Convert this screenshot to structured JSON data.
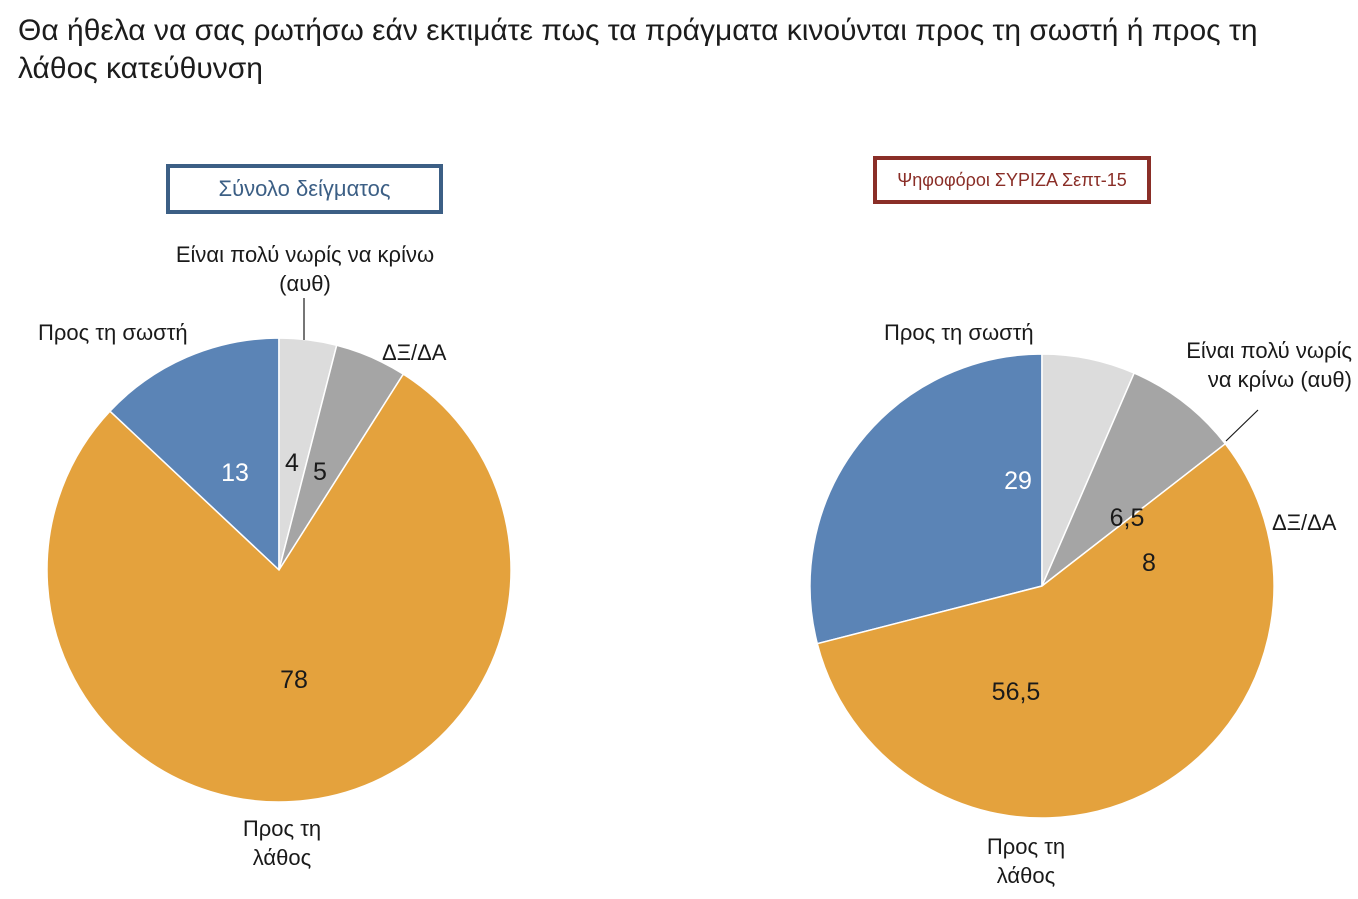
{
  "title": "Θα ήθελα να σας ρωτήσω εάν εκτιμάτε πως τα πράγματα κινούνται προς τη σωστή ή προς τη λάθος κατεύθυνση",
  "colors": {
    "right": "#5b84b6",
    "early": "#dcdcdc",
    "dkna": "#a5a5a5",
    "wrong": "#e4a23d"
  },
  "chart_data": [
    {
      "type": "pie",
      "title": "Σύνολο δείγματος",
      "categories": [
        "Προς τη σωστή",
        "Είναι πολύ νωρίς να κρίνω (αυθ)",
        "ΔΞ/ΔΑ",
        "Προς τη λάθος"
      ],
      "values": [
        13,
        4,
        5,
        78
      ],
      "value_labels": [
        "13",
        "4",
        "5",
        "78"
      ],
      "category_labels": [
        "Προς τη σωστή",
        "Είναι πολύ νωρίς να κρίνω\n(αυθ)",
        "ΔΞ/ΔΑ",
        "Προς τη\nλάθος"
      ]
    },
    {
      "type": "pie",
      "title": "Ψηφοφόροι ΣΥΡΙΖΑ Σεπτ-15",
      "categories": [
        "Προς τη σωστή",
        "Είναι πολύ νωρίς να κρίνω (αυθ)",
        "ΔΞ/ΔΑ",
        "Προς τη λάθος"
      ],
      "values": [
        29,
        6.5,
        8,
        56.5
      ],
      "value_labels": [
        "29",
        "6,5",
        "8",
        "56,5"
      ],
      "category_labels": [
        "Προς τη σωστή",
        "Είναι πολύ νωρίς\nνα κρίνω (αυθ)",
        "ΔΞ/ΔΑ",
        "Προς τη\nλάθος"
      ]
    }
  ]
}
